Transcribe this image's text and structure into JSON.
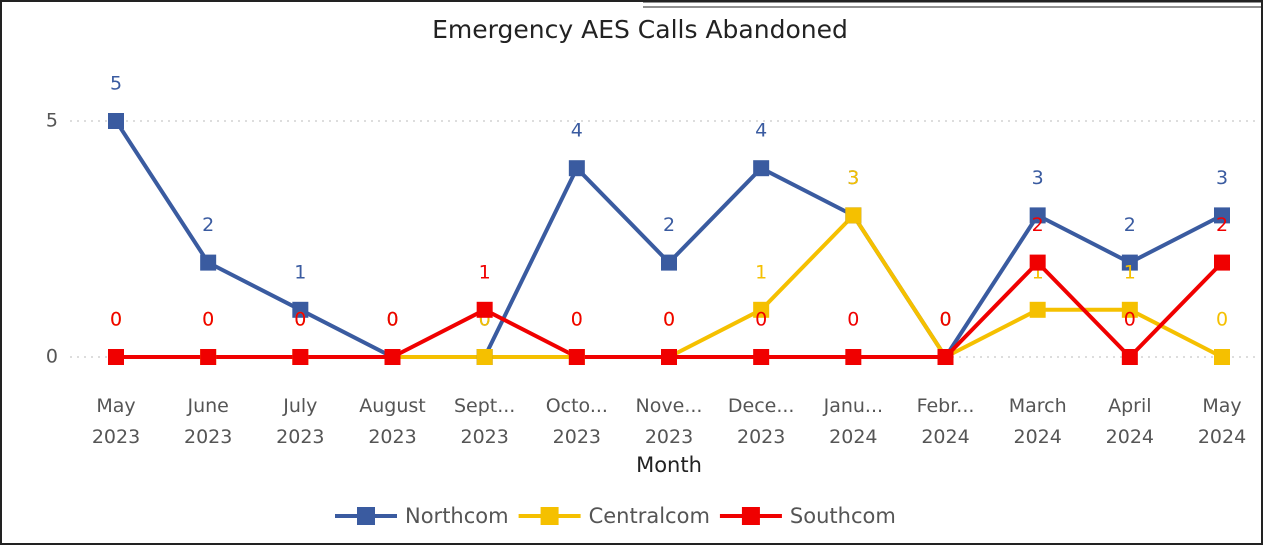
{
  "chart_data": {
    "type": "line",
    "title": "Emergency AES Calls Abandoned",
    "x_label": "Month",
    "categories": [
      "May 2023",
      "June 2023",
      "July 2023",
      "August 2023",
      "Sept... 2023",
      "Octo... 2023",
      "Nove... 2023",
      "Dece... 2023",
      "Janu... 2024",
      "Febr... 2024",
      "March 2024",
      "April 2024",
      "May 2024"
    ],
    "series": [
      {
        "name": "Northcom",
        "color": "#3a5ba0",
        "values": [
          5,
          2,
          1,
          0,
          0,
          4,
          2,
          4,
          3,
          0,
          3,
          2,
          3
        ]
      },
      {
        "name": "Centralcom",
        "color": "#f5c000",
        "values": [
          0,
          0,
          0,
          0,
          0,
          0,
          0,
          1,
          3,
          0,
          1,
          1,
          0
        ]
      },
      {
        "name": "Southcom",
        "color": "#f00000",
        "values": [
          0,
          0,
          0,
          0,
          1,
          0,
          0,
          0,
          0,
          0,
          2,
          0,
          2
        ]
      }
    ],
    "ylim": [
      0,
      5
    ],
    "yticks": [
      0,
      5
    ],
    "grid": true,
    "legend": "bottom"
  }
}
